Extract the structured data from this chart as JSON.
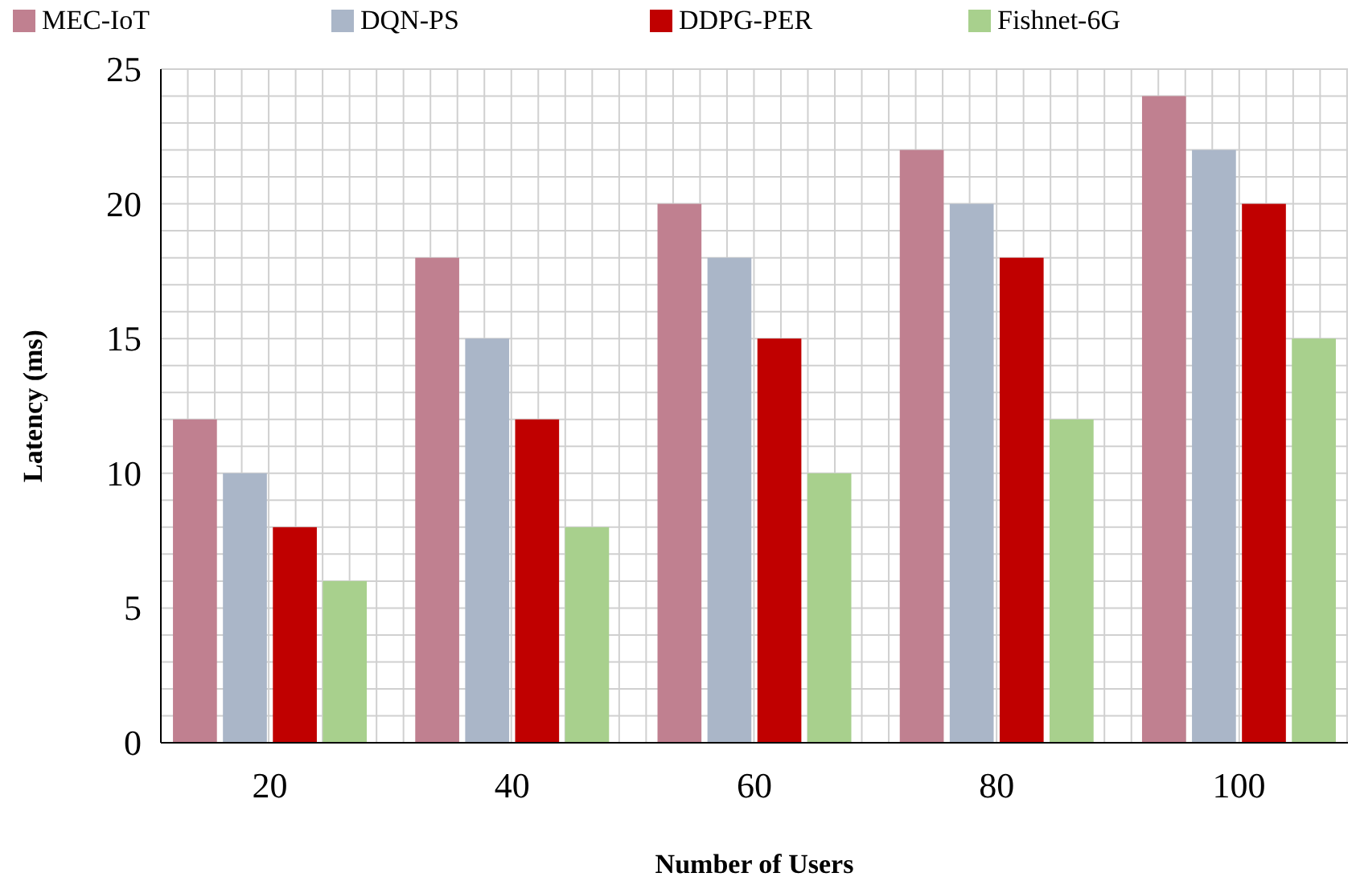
{
  "chart_data": {
    "type": "bar",
    "xlabel": "Number of Users",
    "ylabel": "Latency (ms)",
    "categories": [
      "20",
      "40",
      "60",
      "80",
      "100"
    ],
    "series": [
      {
        "name": "MEC-IoT",
        "color": "#c08090",
        "values": [
          12,
          18,
          20,
          22,
          24
        ]
      },
      {
        "name": "DQN-PS",
        "color": "#aab6c8",
        "values": [
          10,
          15,
          18,
          20,
          22
        ]
      },
      {
        "name": "DDPG-PER",
        "color": "#c00000",
        "values": [
          8,
          12,
          15,
          18,
          20
        ]
      },
      {
        "name": "Fishnet-6G",
        "color": "#a8d08d",
        "values": [
          6,
          8,
          10,
          12,
          15
        ]
      }
    ],
    "ylim": [
      0,
      25
    ],
    "yticks": [
      0,
      {
        "value": 1,
        "label": null
      },
      {
        "value": 2,
        "label": null
      },
      {
        "value": 3,
        "label": null
      },
      {
        "value": 4,
        "label": null
      },
      5,
      {
        "value": 6,
        "label": null
      },
      {
        "value": 7,
        "label": null
      },
      {
        "value": 8,
        "label": null
      },
      {
        "value": 9,
        "label": null
      },
      10,
      {
        "value": 11,
        "label": null
      },
      {
        "value": 12,
        "label": null
      },
      {
        "value": 13,
        "label": null
      },
      {
        "value": 14,
        "label": null
      },
      15,
      {
        "value": 16,
        "label": null
      },
      {
        "value": 17,
        "label": null
      },
      {
        "value": 18,
        "label": null
      },
      {
        "value": 19,
        "label": null
      },
      20,
      {
        "value": 21,
        "label": null
      },
      {
        "value": 22,
        "label": null
      },
      {
        "value": 23,
        "label": null
      },
      {
        "value": 24,
        "label": null
      },
      25
    ],
    "grid": true,
    "legend": "top"
  }
}
